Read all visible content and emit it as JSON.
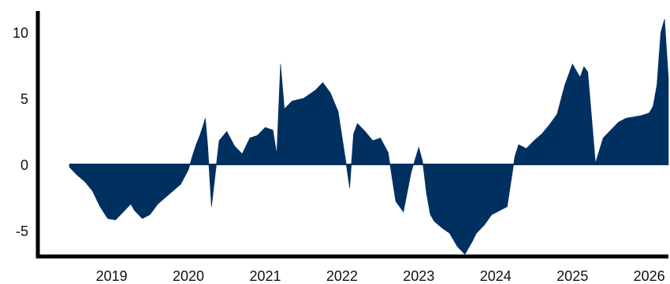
{
  "chart_data": {
    "type": "area",
    "title": "",
    "xlabel": "",
    "ylabel": "",
    "xlim": [
      2018.45,
      2026.25
    ],
    "ylim": [
      -7.0,
      11.5
    ],
    "grid": false,
    "legend": "none",
    "baseline": 0,
    "x_ticks": [
      {
        "value": 2019.0,
        "label": "2019"
      },
      {
        "value": 2020.0,
        "label": "2020"
      },
      {
        "value": 2021.0,
        "label": "2021"
      },
      {
        "value": 2022.0,
        "label": "2022"
      },
      {
        "value": 2023.0,
        "label": "2023"
      },
      {
        "value": 2024.0,
        "label": "2024"
      },
      {
        "value": 2025.0,
        "label": "2025"
      },
      {
        "value": 2026.0,
        "label": "2026"
      }
    ],
    "y_ticks": [
      {
        "value": 10,
        "label": "10"
      },
      {
        "value": 5,
        "label": "5"
      },
      {
        "value": 0,
        "label": "0"
      },
      {
        "value": -5,
        "label": "-5"
      }
    ],
    "series": [
      {
        "color": "#003060",
        "x": [
          2018.45,
          2018.55,
          2018.65,
          2018.75,
          2018.85,
          2018.95,
          2019.05,
          2019.15,
          2019.25,
          2019.3,
          2019.4,
          2019.5,
          2019.6,
          2019.7,
          2019.8,
          2019.9,
          2020.0,
          2020.05,
          2020.1,
          2020.15,
          2020.2,
          2020.22,
          2020.25,
          2020.3,
          2020.4,
          2020.5,
          2020.6,
          2020.7,
          2020.8,
          2020.9,
          2021.0,
          2021.1,
          2021.15,
          2021.2,
          2021.25,
          2021.35,
          2021.5,
          2021.65,
          2021.75,
          2021.85,
          2021.95,
          2022.05,
          2022.1,
          2022.15,
          2022.2,
          2022.3,
          2022.4,
          2022.5,
          2022.6,
          2022.7,
          2022.8,
          2022.9,
          2023.0,
          2023.05,
          2023.1,
          2023.15,
          2023.2,
          2023.3,
          2023.4,
          2023.5,
          2023.6,
          2023.7,
          2023.75,
          2023.85,
          2023.95,
          2024.05,
          2024.15,
          2024.25,
          2024.3,
          2024.4,
          2024.5,
          2024.6,
          2024.7,
          2024.8,
          2024.9,
          2025.0,
          2025.1,
          2025.15,
          2025.2,
          2025.3,
          2025.4,
          2025.5,
          2025.6,
          2025.7,
          2025.8,
          2025.9,
          2026.0,
          2026.05,
          2026.1,
          2026.15,
          2026.2,
          2026.25
        ],
        "values": [
          -0.2,
          -0.8,
          -1.3,
          -2.0,
          -3.2,
          -4.1,
          -4.2,
          -3.6,
          -3.0,
          -3.5,
          -4.1,
          -3.8,
          -3.0,
          -2.5,
          -2.0,
          -1.5,
          -0.4,
          0.6,
          1.5,
          2.2,
          3.1,
          3.5,
          1.5,
          -3.2,
          1.8,
          2.5,
          1.4,
          0.8,
          2.0,
          2.2,
          2.8,
          2.6,
          0.8,
          7.6,
          4.2,
          4.8,
          5.0,
          5.6,
          6.2,
          5.4,
          4.0,
          0.2,
          -1.8,
          2.3,
          3.1,
          2.5,
          1.8,
          2.0,
          0.9,
          -2.8,
          -3.6,
          -0.6,
          1.3,
          0.2,
          -2.2,
          -3.8,
          -4.3,
          -4.8,
          -5.2,
          -6.2,
          -6.8,
          -5.8,
          -5.2,
          -4.6,
          -3.8,
          -3.5,
          -3.2,
          0.6,
          1.5,
          1.2,
          1.8,
          2.3,
          3.0,
          3.8,
          6.0,
          7.6,
          6.6,
          7.4,
          7.0,
          0.1,
          2.0,
          2.6,
          3.2,
          3.5,
          3.6,
          3.7,
          3.9,
          4.4,
          6.0,
          10.0,
          11.0,
          6.5
        ]
      }
    ]
  }
}
